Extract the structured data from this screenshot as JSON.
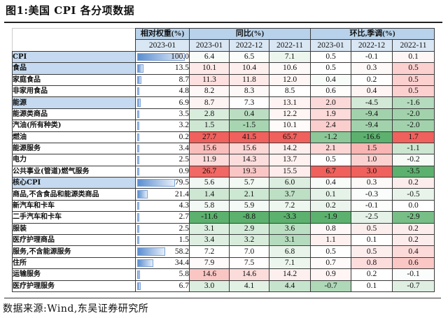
{
  "title": "图1:美国 CPI 各分项数据",
  "source": "数据来源:Wind,东吴证券研究所",
  "header": {
    "weight_label": "相对权重(%)",
    "yoy_label": "同比(%)",
    "mom_label": "环比,季调(%)",
    "weight_date": "2023-01",
    "yoy_dates": [
      "2023-01",
      "2022-12",
      "2022-11"
    ],
    "mom_dates": [
      "2023-01",
      "2022-12",
      "2022-11"
    ]
  },
  "colors": {
    "header_bg": "#b7d2ea",
    "subheader_bg": "#d9e6f3",
    "highlight_row_bg": "#c5daf0",
    "positive_color": "#f0605c",
    "negative_color": "#5cb16e"
  },
  "rows": [
    {
      "name": "CPI",
      "highlight": true,
      "weight": "100.0",
      "yoy": [
        "6.4",
        "6.5",
        "7.1"
      ],
      "mom": [
        "0.5",
        "-0.1",
        "0.1"
      ]
    },
    {
      "name": "食品",
      "highlight": true,
      "weight": "13.5",
      "yoy": [
        "10.1",
        "10.4",
        "10.6"
      ],
      "mom": [
        "0.5",
        "0.3",
        "0.5"
      ]
    },
    {
      "name": "家庭食品",
      "highlight": false,
      "weight": "8.7",
      "yoy": [
        "11.3",
        "11.8",
        "12.0"
      ],
      "mom": [
        "0.4",
        "0.2",
        "0.5"
      ]
    },
    {
      "name": "非家用食品",
      "highlight": false,
      "weight": "4.8",
      "yoy": [
        "8.2",
        "8.3",
        "8.5"
      ],
      "mom": [
        "0.6",
        "0.4",
        "0.5"
      ]
    },
    {
      "name": "能源",
      "highlight": true,
      "weight": "6.9",
      "yoy": [
        "8.7",
        "7.3",
        "13.1"
      ],
      "mom": [
        "2.0",
        "-4.5",
        "-1.6"
      ]
    },
    {
      "name": "能源类商品",
      "highlight": false,
      "weight": "3.5",
      "yoy": [
        "2.8",
        "0.4",
        "12.2"
      ],
      "mom": [
        "1.9",
        "-9.4",
        "-2.0"
      ]
    },
    {
      "name": "汽油(所有种类)",
      "highlight": false,
      "weight": "3.2",
      "yoy": [
        "1.5",
        "-1.5",
        "10.1"
      ],
      "mom": [
        "2.4",
        "-9.4",
        "-2.0"
      ]
    },
    {
      "name": "燃油",
      "highlight": false,
      "weight": "0.2",
      "yoy": [
        "27.7",
        "41.5",
        "65.7"
      ],
      "mom": [
        "-1.2",
        "-16.6",
        "1.7"
      ]
    },
    {
      "name": "能源服务",
      "highlight": false,
      "weight": "3.4",
      "yoy": [
        "15.6",
        "15.6",
        "14.2"
      ],
      "mom": [
        "2.1",
        "1.5",
        "-1.1"
      ]
    },
    {
      "name": "电力",
      "highlight": false,
      "weight": "2.5",
      "yoy": [
        "11.9",
        "14.3",
        "13.7"
      ],
      "mom": [
        "0.5",
        "1.0",
        "-0.2"
      ]
    },
    {
      "name": "公共事业(管道)燃气服务",
      "highlight": false,
      "weight": "0.9",
      "yoy": [
        "26.7",
        "19.3",
        "15.5"
      ],
      "mom": [
        "6.7",
        "3.0",
        "-3.5"
      ]
    },
    {
      "name": "核心CPI",
      "highlight": true,
      "weight": "79.5",
      "yoy": [
        "5.6",
        "5.7",
        "6.0"
      ],
      "mom": [
        "0.4",
        "0.3",
        "0.2"
      ]
    },
    {
      "name": "商品,不含食品和能源类商品",
      "highlight": false,
      "weight": "21.4",
      "yoy": [
        "1.4",
        "2.1",
        "3.7"
      ],
      "mom": [
        "0.1",
        "-0.3",
        "-0.5"
      ]
    },
    {
      "name": "新汽车和卡车",
      "highlight": false,
      "weight": "4.3",
      "yoy": [
        "5.8",
        "5.9",
        "7.2"
      ],
      "mom": [
        "0.2",
        "-0.1",
        "0.0"
      ]
    },
    {
      "name": "二手汽车和卡车",
      "highlight": false,
      "weight": "2.7",
      "yoy": [
        "-11.6",
        "-8.8",
        "-3.3"
      ],
      "mom": [
        "-1.9",
        "-2.5",
        "-2.9"
      ]
    },
    {
      "name": "服装",
      "highlight": false,
      "weight": "2.5",
      "yoy": [
        "3.1",
        "2.9",
        "3.6"
      ],
      "mom": [
        "0.8",
        "0.5",
        "0.2"
      ]
    },
    {
      "name": "医疗护理商品",
      "highlight": false,
      "weight": "1.5",
      "yoy": [
        "3.4",
        "3.2",
        "3.1"
      ],
      "mom": [
        "1.1",
        "0.1",
        "0.2"
      ]
    },
    {
      "name": "服务,不含能源服务",
      "highlight": false,
      "weight": "58.2",
      "yoy": [
        "7.2",
        "7.0",
        "6.8"
      ],
      "mom": [
        "0.5",
        "0.5",
        "0.4"
      ]
    },
    {
      "name": "住所",
      "highlight": false,
      "weight": "34.4",
      "yoy": [
        "7.9",
        "7.5",
        "7.1"
      ],
      "mom": [
        "0.7",
        "0.8",
        "0.6"
      ]
    },
    {
      "name": "运输服务",
      "highlight": false,
      "weight": "5.8",
      "yoy": [
        "14.6",
        "14.6",
        "14.2"
      ],
      "mom": [
        "0.9",
        "0.2",
        "-0.1"
      ]
    },
    {
      "name": "医疗护理服务",
      "highlight": false,
      "weight": "6.7",
      "yoy": [
        "3.0",
        "4.1",
        "4.4"
      ],
      "mom": [
        "-0.7",
        "0.1",
        "-0.7"
      ]
    }
  ]
}
